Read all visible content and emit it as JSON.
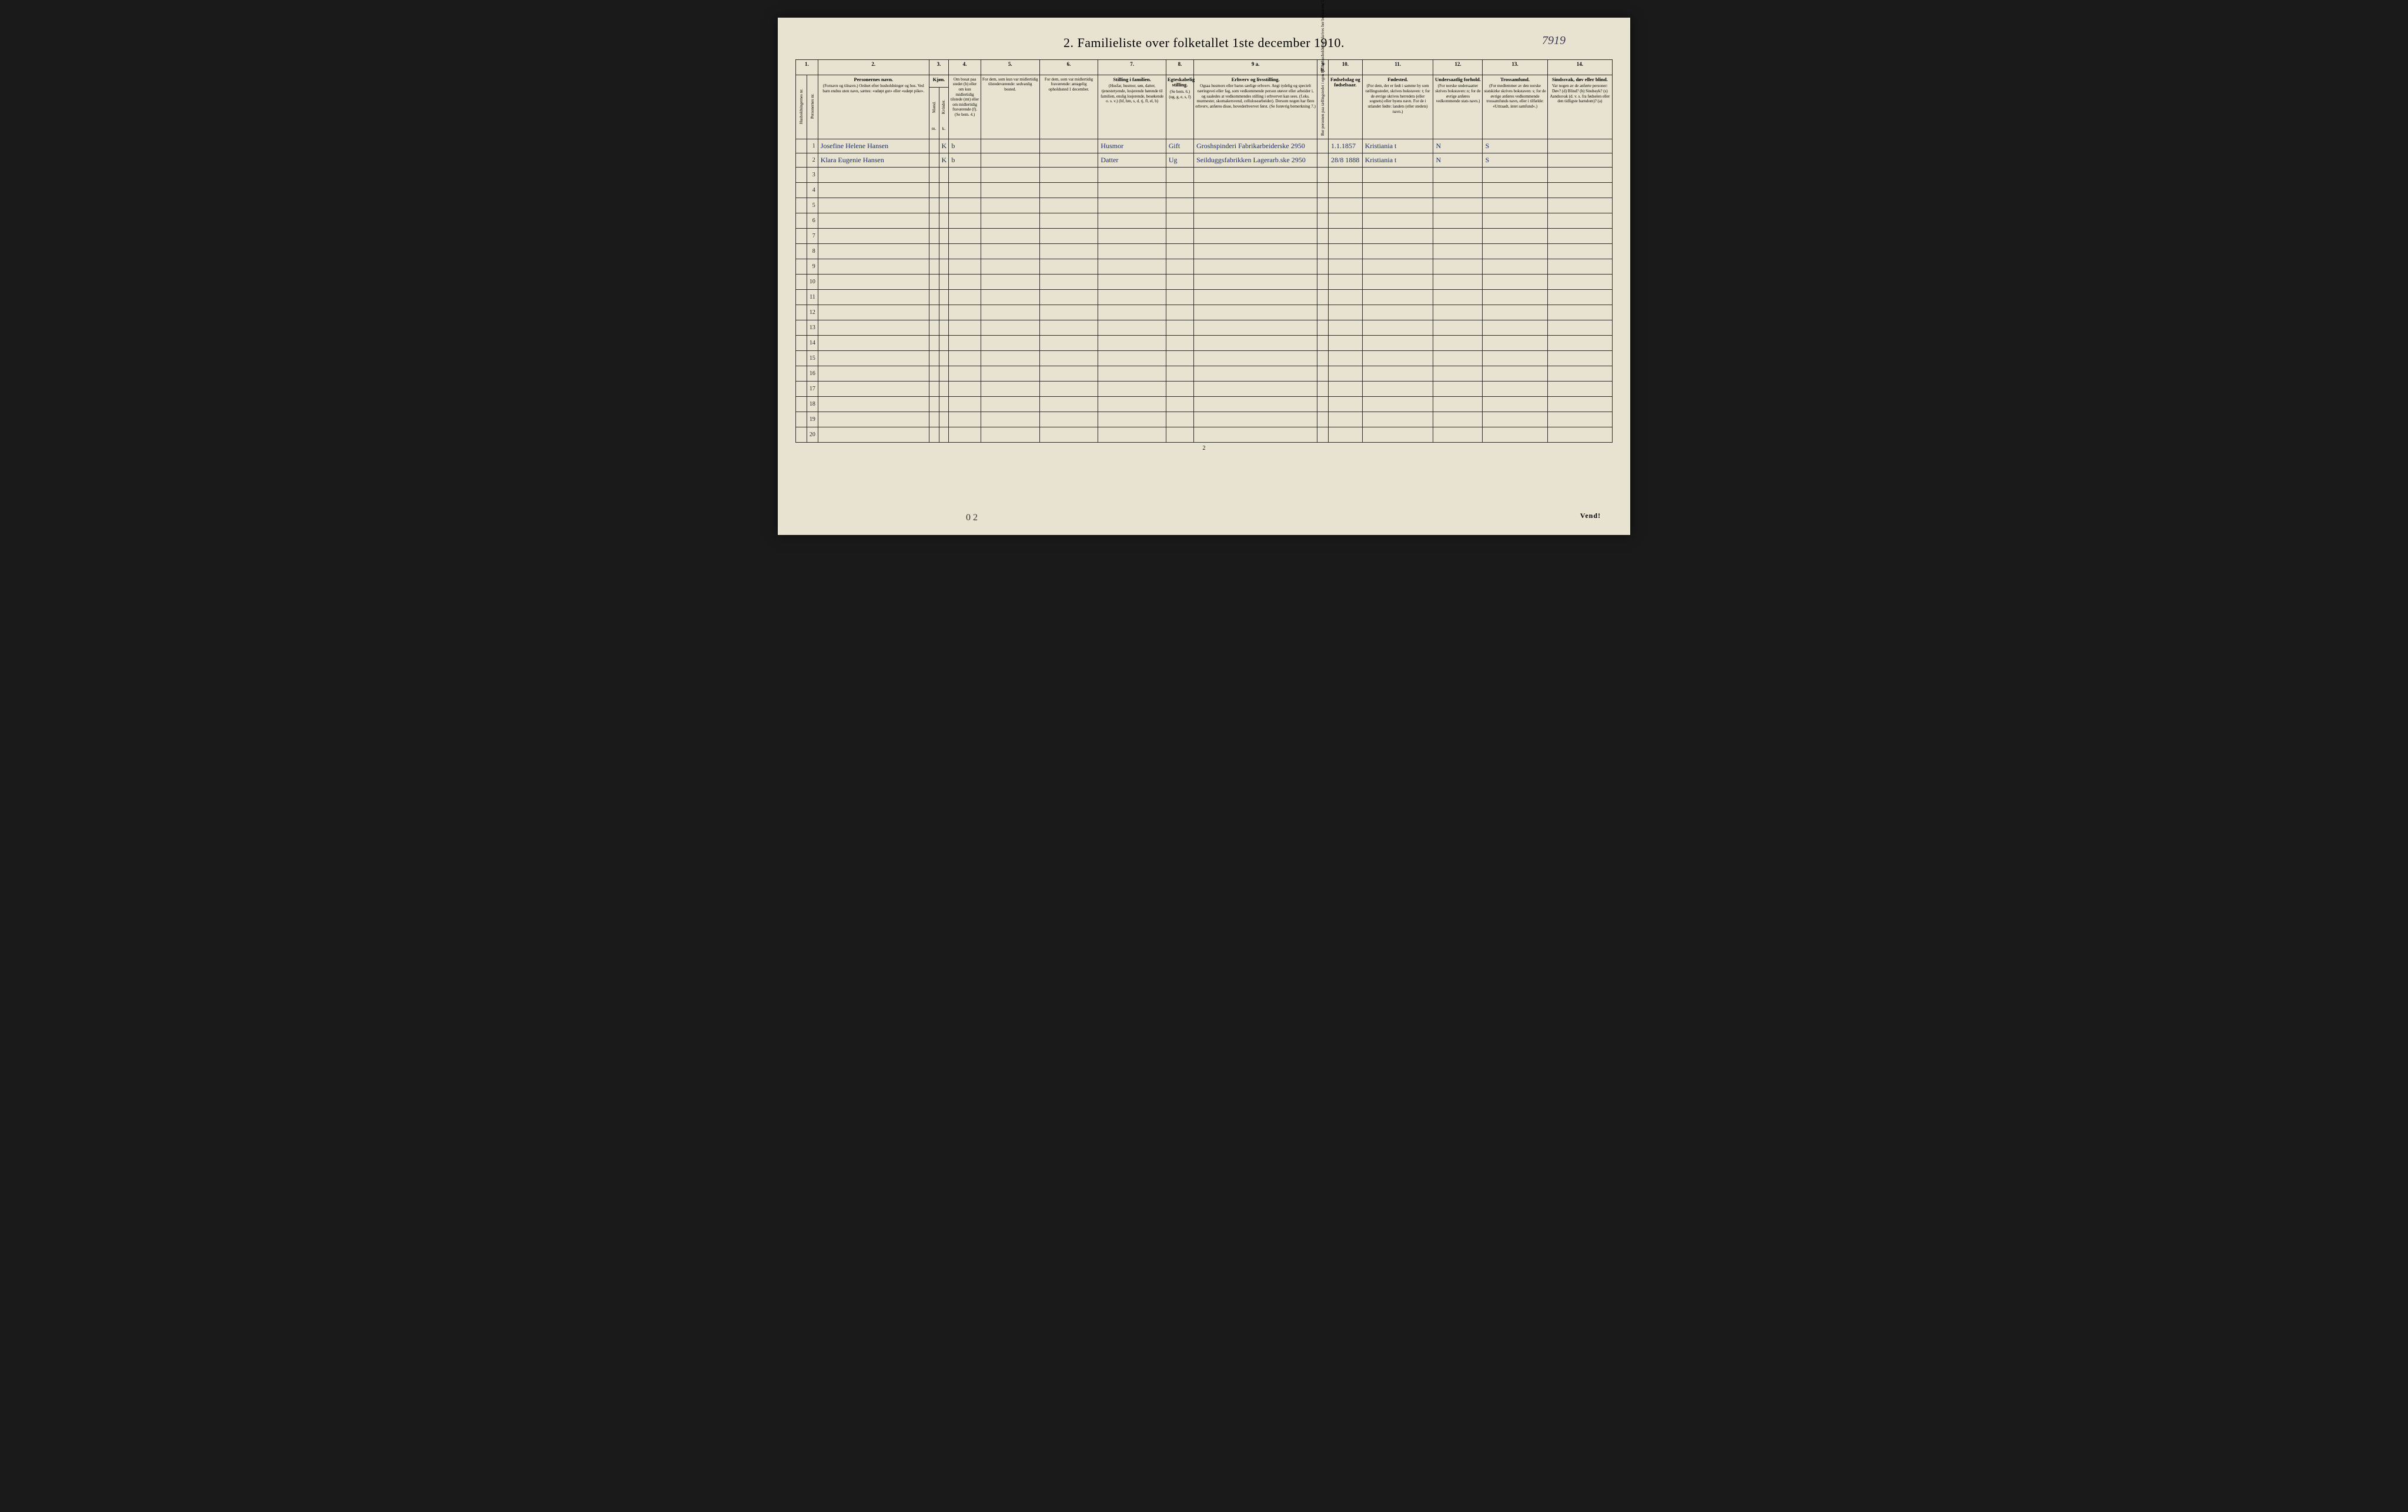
{
  "title": "2.  Familieliste over folketallet 1ste december 1910.",
  "handwritten_page_number": "7919",
  "bottom_handwritten": "0 2",
  "vend_label": "Vend!",
  "footer_page_num": "2",
  "column_numbers": [
    "1.",
    "2.",
    "3.",
    "4.",
    "5.",
    "6.",
    "7.",
    "8.",
    "9 a.",
    "9 b.",
    "10.",
    "11.",
    "12.",
    "13.",
    "14."
  ],
  "headers": {
    "col1a": "Husholdningernes nr.",
    "col1b": "Personernes nr.",
    "col2_title": "Personernes navn.",
    "col2_sub": "(Fornavn og tilnavn.)\nOrdnet efter husholdninger og hus.\nVed barn endnu uten navn, sættes: «udøpt gut» eller «udøpt pike».",
    "col3_title": "Kjøn.",
    "col3_m": "m.",
    "col3_k": "k.",
    "col3_mand": "Mænd.",
    "col3_kvinder": "Kvinder.",
    "col4": "Om bosat paa stedet (b) eller om kun midlertidig tilstede (mt) eller om midlertidig fraværende (f). (Se bem. 4.)",
    "col5": "For dem, som kun var midlertidig tilstedeværende:\nsedvanlig bosted.",
    "col6": "For dem, som var midlertidig fraværende:\nantagelig opholdssted 1 december.",
    "col7_title": "Stilling i familien.",
    "col7_sub": "(Husfar, husmor, søn, datter, tjenestetyende, losjerende hørende til familien, enslig losjerende, besøkende o. s. v.)\n(hf, hm, s, d, tj, fl, el, b)",
    "col8_title": "Egteskabelig stilling.",
    "col8_sub": "(Se bem. 6.)\n(ug, g, e, s, f)",
    "col9a_title": "Erhverv og livsstilling.",
    "col9a_sub": "Ogsaa husmors eller barns særlige erhverv. Angi tydelig og specielt næringsvei eller fag, som vedkommende person utøver eller arbeider i, og saaledes at vedkommendes stilling i erhvervet kan sees. (f.eks. murmester, skomakersvend, cellulosearbeider). Dersom nogen har flere erhverv, anføres disse, hovederhvervet først. (Se forøvrig bemerkning 7.)",
    "col9b": "Bor personen paa tællingstedet i egen huslig husholdning, skrives her bokstaven: l.",
    "col10_title": "Fødselsdag og fødselsaar.",
    "col11_title": "Fødested.",
    "col11_sub": "(For dem, der er født i samme by som tællingsstedet, skrives bokstaven: t; for de øvrige skrives herredets (eller sognets) eller byens navn. For de i utlandet fødte: landets (eller stedets) navn.)",
    "col12_title": "Undersaatlig forhold.",
    "col12_sub": "(For norske undersaatter skrives bokstaven: n; for de øvrige anføres vedkommende stats navn.)",
    "col13_title": "Trossamfund.",
    "col13_sub": "(For medlemmer av den norske statskirke skrives bokstaven: s; for de øvrige anføres vedkommende trossamfunds navn, eller i tilfælde: «Uttraadt, intet samfund».)",
    "col14_title": "Sindssvak, døv eller blind.",
    "col14_sub": "Var nogen av de anførte personer:\nDøv?        (d)\nBlind?      (b)\nSindssyk?  (s)\nAandssvak (d. v. s. fra fødselen eller den tidligste barndom)? (a)"
  },
  "rows": [
    {
      "nr": "1",
      "hh": "",
      "name": "Josefine Helene Hansen",
      "sex_m": "",
      "sex_k": "K",
      "resident": "b",
      "temp_present": "",
      "temp_absent": "",
      "family_pos": "Husmor",
      "marital": "Gift",
      "occupation": "Groshspinderi Fabrikarbeiderske",
      "occ_num": "2950",
      "col9b": "",
      "birth": "1.1.1857",
      "birthplace": "Kristiania t",
      "nationality": "N",
      "faith": "S",
      "disability": ""
    },
    {
      "nr": "2",
      "hh": "",
      "name": "Klara Eugenie Hansen",
      "sex_m": "",
      "sex_k": "K",
      "resident": "b",
      "temp_present": "",
      "temp_absent": "",
      "family_pos": "Datter",
      "marital": "Ug",
      "occupation": "Seilduggsfabrikken Lagerarb.ske",
      "occ_num": "2950",
      "col9b": "",
      "birth": "28/8 1888",
      "birthplace": "Kristiania t",
      "nationality": "N",
      "faith": "S",
      "disability": ""
    }
  ],
  "empty_row_numbers": [
    "3",
    "4",
    "5",
    "6",
    "7",
    "8",
    "9",
    "10",
    "11",
    "12",
    "13",
    "14",
    "15",
    "16",
    "17",
    "18",
    "19",
    "20"
  ],
  "colwidths": {
    "c1a": 18,
    "c1b": 18,
    "c2": 180,
    "c3a": 16,
    "c3b": 16,
    "c4": 52,
    "c5": 95,
    "c6": 95,
    "c7": 110,
    "c8": 45,
    "c9a": 200,
    "c9b": 18,
    "c10": 55,
    "c11": 115,
    "c12": 80,
    "c13": 105,
    "c14": 105
  },
  "colors": {
    "paper": "#e8e3d0",
    "ink": "#2a2a2a",
    "handwriting": "#1a2a6b",
    "background": "#1a1a1a"
  }
}
